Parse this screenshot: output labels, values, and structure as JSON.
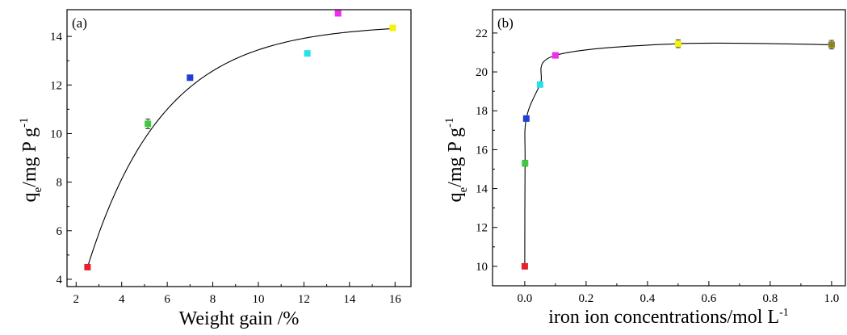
{
  "chart_data": [
    {
      "type": "scatter",
      "panel": "(a)",
      "xlabel": "Weight gain /%",
      "ylabel_main": "q",
      "ylabel_sub": "e",
      "ylabel_rest": "/mg P g",
      "ylabel_sup": "-1",
      "xlim": [
        1.6,
        16.7
      ],
      "ylim": [
        3.7,
        15.1
      ],
      "xticks": [
        2,
        4,
        6,
        8,
        10,
        12,
        14,
        16
      ],
      "yticks": [
        4,
        6,
        8,
        10,
        12,
        14
      ],
      "fit_curve": true,
      "grid": false,
      "points": [
        {
          "x": 2.5,
          "y": 4.5,
          "err": 0.0,
          "color": "#e8202a"
        },
        {
          "x": 5.15,
          "y": 10.4,
          "err": 0.2,
          "color": "#3ec93e"
        },
        {
          "x": 7.0,
          "y": 12.3,
          "err": 0.05,
          "color": "#1f3fd6"
        },
        {
          "x": 12.15,
          "y": 13.3,
          "err": 0.0,
          "color": "#27e0e8"
        },
        {
          "x": 13.5,
          "y": 14.95,
          "err": 0.0,
          "color": "#ee2ee8"
        },
        {
          "x": 15.9,
          "y": 14.35,
          "err": 0.05,
          "color": "#f2f20a"
        }
      ]
    },
    {
      "type": "scatter",
      "panel": "(b)",
      "xlabel_main": "iron ion concentrations/mol L",
      "xlabel_sup": "-1",
      "ylabel_main": "q",
      "ylabel_sub": "e",
      "ylabel_rest": "/mg P g",
      "ylabel_sup": "-1",
      "xlim": [
        -0.105,
        1.045
      ],
      "ylim": [
        9.0,
        23.2
      ],
      "xticks": [
        "0.0",
        "0.2",
        "0.4",
        "0.6",
        "0.8",
        "1.0"
      ],
      "yticks": [
        10,
        12,
        14,
        16,
        18,
        20,
        22
      ],
      "fit_curve": true,
      "grid": false,
      "points": [
        {
          "x": 0.0,
          "y": 10.0,
          "err": 0.0,
          "color": "#e8202a"
        },
        {
          "x": 0.001,
          "y": 15.3,
          "err": 0.15,
          "color": "#3ec93e"
        },
        {
          "x": 0.005,
          "y": 17.6,
          "err": 0.1,
          "color": "#1f3fd6"
        },
        {
          "x": 0.05,
          "y": 19.35,
          "err": 0.1,
          "color": "#27e0e8"
        },
        {
          "x": 0.1,
          "y": 20.85,
          "err": 0.05,
          "color": "#ee2ee8"
        },
        {
          "x": 0.5,
          "y": 21.45,
          "err": 0.2,
          "color": "#f2f20a"
        },
        {
          "x": 1.0,
          "y": 21.4,
          "err": 0.22,
          "color": "#8b8420"
        }
      ]
    }
  ]
}
